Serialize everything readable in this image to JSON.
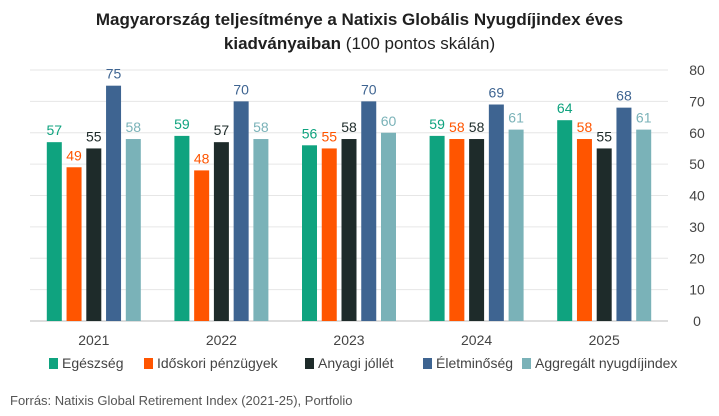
{
  "title_line1": "Magyarország teljesítménye a Natixis Globális Nyugdíjindex éves",
  "title_line2_bold": "kiadványaiban",
  "title_line2_rest": " (100 pontos skálán)",
  "source": "Forrás: Natixis Global Retirement Index (2021-25), Portfolio",
  "chart_data": {
    "type": "bar",
    "categories": [
      "2021",
      "2022",
      "2023",
      "2024",
      "2025"
    ],
    "ylim": [
      0,
      80
    ],
    "yticks": [
      0,
      10,
      20,
      30,
      40,
      50,
      60,
      70,
      80
    ],
    "y_axis_side": "right",
    "grid": true,
    "legend_position": "bottom",
    "series": [
      {
        "name": "Egészség",
        "color": "#0fa37f",
        "values": [
          57,
          59,
          56,
          59,
          64
        ]
      },
      {
        "name": "Időskori pénzügyek",
        "color": "#ff5500",
        "values": [
          49,
          48,
          55,
          58,
          58
        ]
      },
      {
        "name": "Anyagi jóllét",
        "color": "#1e2b2a",
        "values": [
          55,
          57,
          58,
          58,
          55
        ]
      },
      {
        "name": "Életminőség",
        "color": "#3e6491",
        "values": [
          75,
          70,
          70,
          69,
          68
        ]
      },
      {
        "name": "Aggregált nyugdíjindex",
        "color": "#7ab2b8",
        "values": [
          58,
          58,
          60,
          61,
          61
        ]
      }
    ]
  }
}
